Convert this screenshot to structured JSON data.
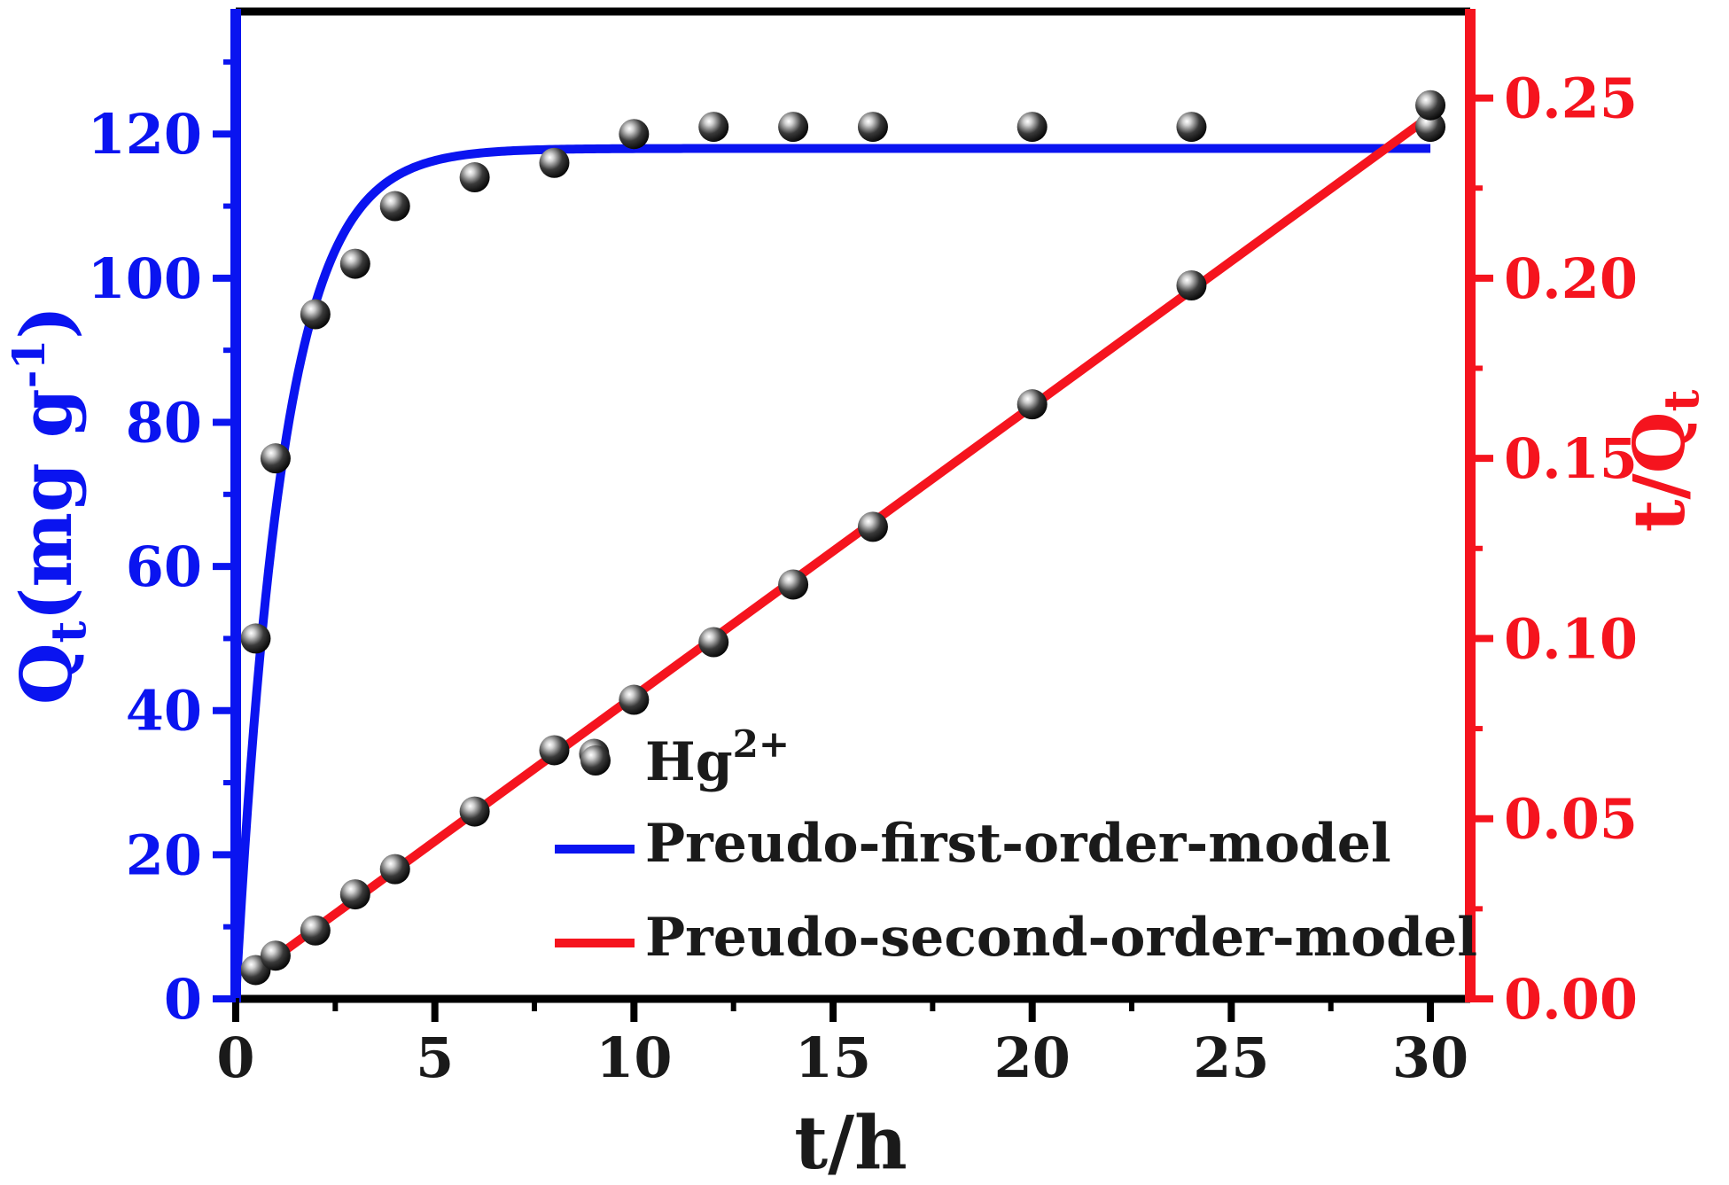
{
  "chart_data": {
    "type": "line",
    "x_axis": {
      "label": "t/h",
      "range": [
        0,
        31
      ],
      "ticks": [
        0,
        5,
        10,
        15,
        20,
        25,
        30
      ],
      "tick_labels": [
        "0",
        "5",
        "10",
        "15",
        "20",
        "25",
        "30"
      ]
    },
    "y_axis_left": {
      "label_main": "Q",
      "label_sub": "t",
      "label_rest": "(mg g",
      "label_sup": "-1",
      "label_close": ")",
      "range": [
        0,
        137
      ],
      "ticks": [
        0,
        20,
        40,
        60,
        80,
        100,
        120
      ],
      "tick_labels": [
        "0",
        "20",
        "40",
        "60",
        "80",
        "100",
        "120"
      ],
      "color": "#0a14f0"
    },
    "y_axis_right": {
      "label_main": "t/Q",
      "label_sub": "t",
      "range": [
        0,
        0.274
      ],
      "ticks": [
        0,
        0.05,
        0.1,
        0.15,
        0.2,
        0.25
      ],
      "tick_labels": [
        "0.00",
        "0.05",
        "0.10",
        "0.15",
        "0.20",
        "0.25"
      ],
      "color": "#f5141e"
    },
    "legend": {
      "placement": "bottom-right",
      "entries": [
        {
          "marker": "sphere",
          "label_main": "Hg",
          "label_sup": "2+"
        },
        {
          "marker": "line",
          "color": "#0a14f0",
          "label": "Preudo-first-order-model"
        },
        {
          "marker": "line",
          "color": "#f5141e",
          "label": "Preudo-second-order-model"
        }
      ]
    },
    "series": [
      {
        "kind": "scatter",
        "axis": "left",
        "x": [
          0.5,
          1,
          2,
          3,
          4,
          6,
          8,
          10,
          12,
          14,
          16,
          20,
          24,
          30
        ],
        "y": [
          50,
          75,
          95,
          102,
          110,
          114,
          116,
          120,
          121,
          121,
          121,
          121,
          121,
          121
        ]
      },
      {
        "kind": "scatter",
        "axis": "right",
        "x": [
          0.5,
          1,
          2,
          3,
          4,
          6,
          8,
          9,
          10,
          12,
          14,
          16,
          20,
          24,
          30
        ],
        "y": [
          0.008,
          0.012,
          0.019,
          0.029,
          0.036,
          0.052,
          0.069,
          0.068,
          0.083,
          0.099,
          0.115,
          0.131,
          0.165,
          0.198,
          0.248
        ]
      },
      {
        "kind": "line",
        "axis": "left",
        "color": "#0a14f0",
        "model": "first-order",
        "qe": 118,
        "k1": 0.85,
        "x_range": [
          0,
          30
        ]
      },
      {
        "kind": "line",
        "axis": "right",
        "color": "#f5141e",
        "model": "linear",
        "x_range": [
          0.5,
          30
        ],
        "y_range": [
          0.0075,
          0.245
        ]
      }
    ]
  }
}
